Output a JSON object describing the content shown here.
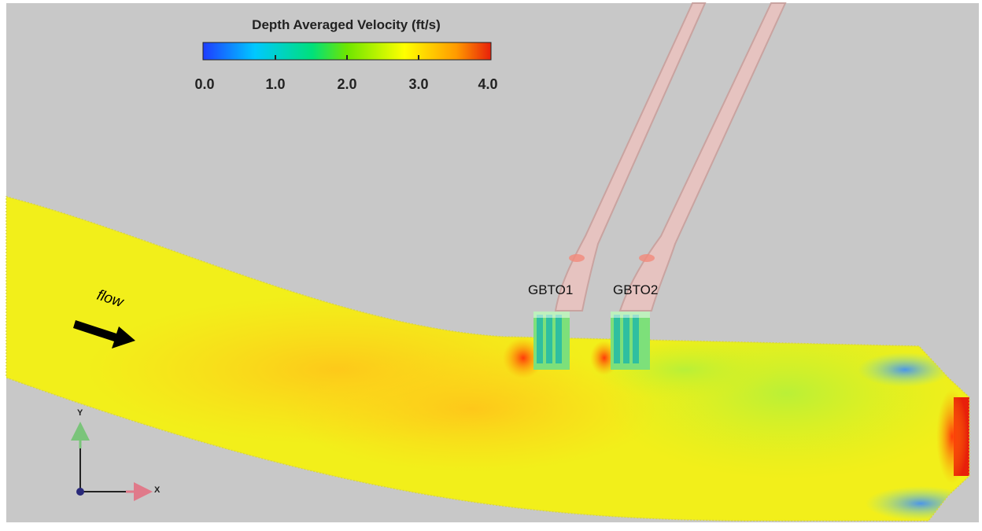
{
  "colorbar": {
    "title": "Depth Averaged Velocity (ft/s)",
    "ticks": [
      "0.0",
      "1.0",
      "2.0",
      "3.0",
      "4.0"
    ],
    "colors": [
      "#1e3cff",
      "#00c8ff",
      "#00e07a",
      "#6ee600",
      "#ffff00",
      "#ff9a00",
      "#e8200a"
    ]
  },
  "labels": {
    "gbto1": "GBTO1",
    "gbto2": "GBTO2",
    "flow": "flow"
  },
  "axes": {
    "y": "Y",
    "x": "X"
  },
  "palette": {
    "background": "#c8c8c8",
    "channel_main": "#f2ef1a",
    "channel_warm": "#ffd21a",
    "bypass_pipe": "#e6c3c0",
    "frame": "#ffffff"
  }
}
